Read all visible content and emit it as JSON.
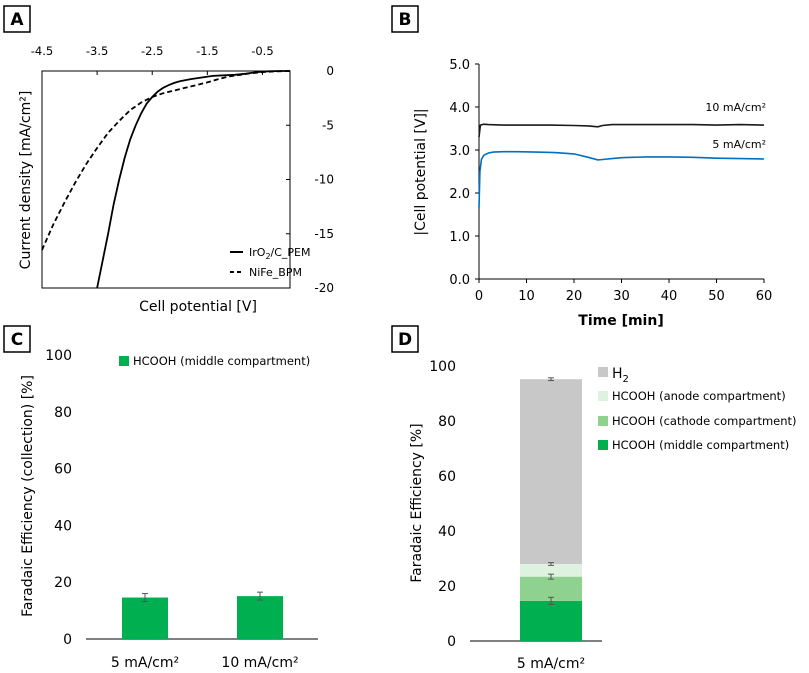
{
  "panels": {
    "a": {
      "letter": "A"
    },
    "b": {
      "letter": "B"
    },
    "c": {
      "letter": "C"
    },
    "d": {
      "letter": "D"
    }
  },
  "chart_data": [
    {
      "panel": "A",
      "type": "line",
      "xlabel": "Cell potential [V]",
      "ylabel": "Current density [mA/cm²]",
      "x_axis_position": "top",
      "y_axis_position": "right",
      "x_reversed": false,
      "xlim": [
        -4.5,
        0.0
      ],
      "ylim": [
        -20,
        0
      ],
      "x_ticks": [
        -4.5,
        -3.5,
        -2.5,
        -1.5,
        -0.5
      ],
      "x_tick_labels": [
        "-4.5",
        "-3.5",
        "-2.5",
        "-1.5",
        "-0.5"
      ],
      "y_ticks": [
        0,
        -5,
        -10,
        -15,
        -20
      ],
      "y_tick_labels": [
        "0",
        "-5",
        "-10",
        "-15",
        "-20"
      ],
      "legend_position": "bottom-right",
      "series": [
        {
          "name": "IrO₂/C_PEM",
          "legend_main": "IrO",
          "legend_sub": "2",
          "legend_rest": "/C_PEM",
          "style": "solid",
          "color": "#000000",
          "x": [
            -3.5,
            -3.4,
            -3.3,
            -3.2,
            -3.1,
            -3.0,
            -2.9,
            -2.8,
            -2.7,
            -2.6,
            -2.5,
            -2.4,
            -2.3,
            -2.2,
            -2.1,
            -2.0,
            -1.8,
            -1.6,
            -1.4,
            -1.2,
            -1.0,
            -0.8,
            -0.6,
            -0.4,
            -0.2,
            0.0
          ],
          "y": [
            -20.0,
            -17.5,
            -15.0,
            -12.3,
            -10.0,
            -8.0,
            -6.3,
            -5.0,
            -3.9,
            -3.0,
            -2.4,
            -1.9,
            -1.55,
            -1.3,
            -1.1,
            -0.95,
            -0.75,
            -0.6,
            -0.45,
            -0.4,
            -0.35,
            -0.25,
            -0.1,
            -0.03,
            0.0,
            0.0
          ]
        },
        {
          "name": "NiFe_BPM",
          "style": "dashed",
          "color": "#000000",
          "x": [
            -4.5,
            -4.3,
            -4.1,
            -3.9,
            -3.7,
            -3.5,
            -3.3,
            -3.1,
            -2.9,
            -2.7,
            -2.5,
            -2.3,
            -2.1,
            -1.9,
            -1.7,
            -1.5,
            -1.3,
            -1.1,
            -0.9,
            -0.7,
            -0.5,
            -0.3,
            0.0
          ],
          "y": [
            -16.5,
            -14.2,
            -12.2,
            -10.3,
            -8.6,
            -7.1,
            -5.7,
            -4.6,
            -3.6,
            -2.9,
            -2.4,
            -2.05,
            -1.8,
            -1.55,
            -1.3,
            -1.05,
            -0.75,
            -0.5,
            -0.35,
            -0.2,
            -0.1,
            -0.05,
            0.0
          ]
        }
      ]
    },
    {
      "panel": "B",
      "type": "line",
      "xlabel": "Time [min]",
      "ylabel": "|Cell potential [V]|",
      "xlim": [
        0,
        60
      ],
      "ylim": [
        0,
        5
      ],
      "x_ticks": [
        0,
        10,
        20,
        30,
        40,
        50,
        60
      ],
      "x_tick_labels": [
        "0",
        "10",
        "20",
        "30",
        "40",
        "50",
        "60"
      ],
      "y_ticks": [
        0,
        1,
        2,
        3,
        4,
        5
      ],
      "y_tick_labels": [
        "0.0",
        "1.0",
        "2.0",
        "3.0",
        "4.0",
        "5.0"
      ],
      "series": [
        {
          "name": "10 mA/cm²",
          "color": "#1a1a1a",
          "x": [
            0,
            0.3,
            1,
            2,
            5,
            10,
            15,
            20,
            23,
            25,
            26,
            28,
            30,
            35,
            40,
            45,
            50,
            55,
            60
          ],
          "y": [
            3.3,
            3.58,
            3.6,
            3.59,
            3.58,
            3.58,
            3.58,
            3.57,
            3.56,
            3.54,
            3.57,
            3.59,
            3.59,
            3.59,
            3.59,
            3.59,
            3.58,
            3.59,
            3.58
          ]
        },
        {
          "name": "5 mA/cm²",
          "color": "#0070c0",
          "x": [
            0,
            0.2,
            0.5,
            1,
            2,
            3,
            5,
            8,
            12,
            16,
            20,
            23,
            25,
            26,
            28,
            30,
            35,
            40,
            45,
            50,
            55,
            60
          ],
          "y": [
            1.65,
            2.5,
            2.78,
            2.88,
            2.93,
            2.95,
            2.96,
            2.96,
            2.95,
            2.94,
            2.91,
            2.83,
            2.77,
            2.78,
            2.8,
            2.82,
            2.84,
            2.84,
            2.83,
            2.81,
            2.8,
            2.79
          ]
        }
      ]
    },
    {
      "panel": "C",
      "type": "bar",
      "ylabel": "Faradaic Efficiency (collection) [%]",
      "xlabel": "",
      "categories": [
        "5 mA/cm²",
        "10 mA/cm²"
      ],
      "ylim": [
        0,
        100
      ],
      "y_ticks": [
        0,
        20,
        40,
        60,
        80,
        100
      ],
      "y_tick_labels": [
        "0",
        "20",
        "40",
        "60",
        "80",
        "100"
      ],
      "legend_position": "top-left",
      "series": [
        {
          "name": "HCOOH (middle compartment)",
          "color": "#00b050",
          "values": [
            14.6,
            15.1
          ],
          "errors": [
            1.4,
            1.4
          ]
        }
      ]
    },
    {
      "panel": "D",
      "type": "bar",
      "stacked": true,
      "ylabel": "Faradaic Efficiency [%]",
      "xlabel": "",
      "categories": [
        "5 mA/cm²"
      ],
      "ylim": [
        0,
        100
      ],
      "y_ticks": [
        0,
        20,
        40,
        60,
        80,
        100
      ],
      "y_tick_labels": [
        "0",
        "20",
        "40",
        "60",
        "80",
        "100"
      ],
      "legend_position": "top-right",
      "series": [
        {
          "name": "HCOOH (middle compartment)",
          "color": "#00b050",
          "values": [
            14.6
          ],
          "errors": [
            1.3
          ]
        },
        {
          "name": "HCOOH (cathode compartment)",
          "color": "#8fd28f",
          "values": [
            8.8
          ],
          "errors": [
            0.9
          ]
        },
        {
          "name": "HCOOH (anode compartment)",
          "color": "#dff2df",
          "values": [
            4.6
          ],
          "errors": [
            0.5
          ]
        },
        {
          "name": "H₂",
          "legend_main": "H",
          "legend_sub": "2",
          "color": "#c8c8c8",
          "values": [
            67.2
          ],
          "errors": [
            0.5
          ]
        }
      ]
    }
  ]
}
